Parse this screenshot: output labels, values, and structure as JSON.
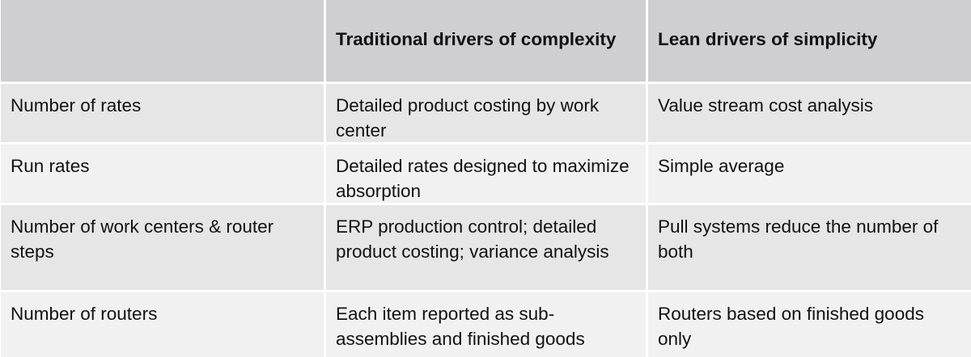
{
  "table": {
    "headers": [
      "",
      "Traditional drivers of complexity",
      "Lean drivers of simplicity"
    ],
    "rows": [
      [
        "Number of rates",
        "Detailed product costing by work center",
        "Value stream cost analysis"
      ],
      [
        "Run rates",
        "Detailed rates designed to maximize absorption",
        "Simple average"
      ],
      [
        "Number of work centers & router steps",
        "ERP production control; detailed product costing; variance analysis",
        "Pull systems reduce the number of both"
      ],
      [
        "Number of routers",
        "Each item reported as sub-assemblies and finished goods",
        "Routers based on finished goods only"
      ]
    ]
  },
  "colors": {
    "header_bg": "#cfcfd1",
    "row_alt_bg": "#e6e6e7",
    "row_plain_bg": "#f1f1f2",
    "divider": "#ffffff"
  }
}
